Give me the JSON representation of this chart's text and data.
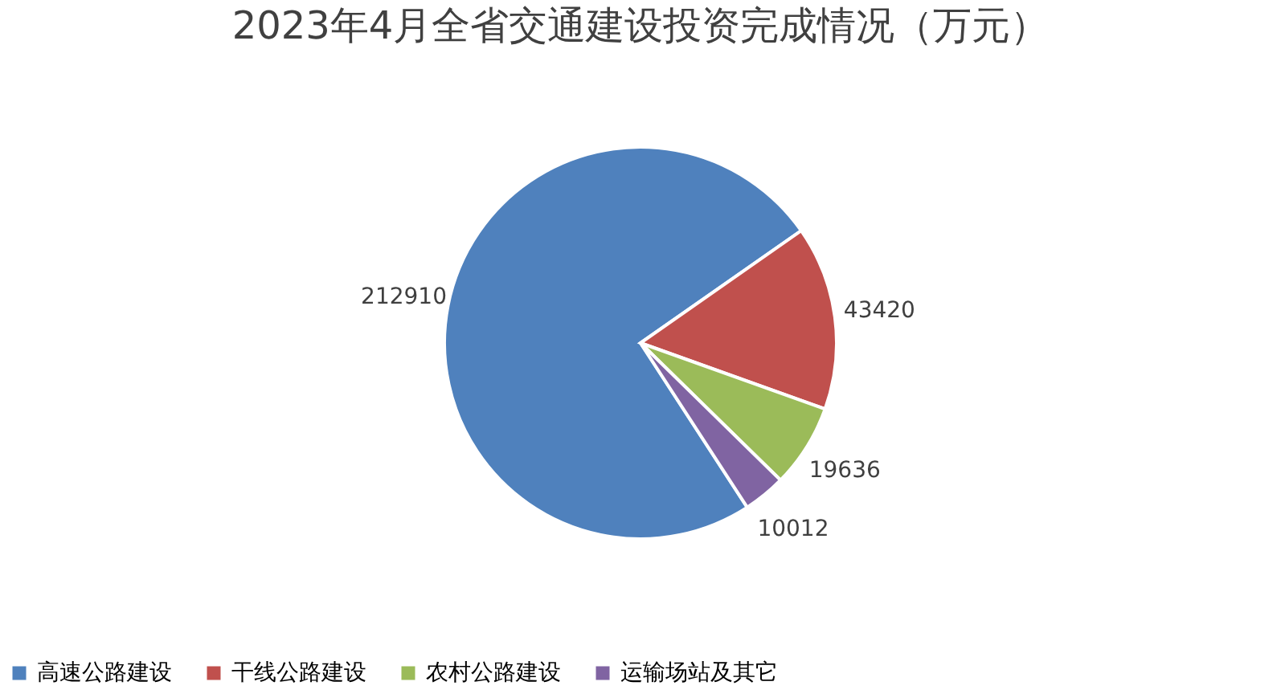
{
  "chart_data": {
    "type": "pie",
    "title": "2023年4月全省交通建设投资完成情况（万元）",
    "categories": [
      "高速公路建设",
      "干线公路建设",
      "农村公路建设",
      "运输场站及其它"
    ],
    "values": [
      212910,
      43420,
      19636,
      10012
    ],
    "colors": [
      "#4f81bd",
      "#c0504d",
      "#9bbb59",
      "#8064a2"
    ],
    "data_labels": true,
    "legend": "bottom"
  }
}
